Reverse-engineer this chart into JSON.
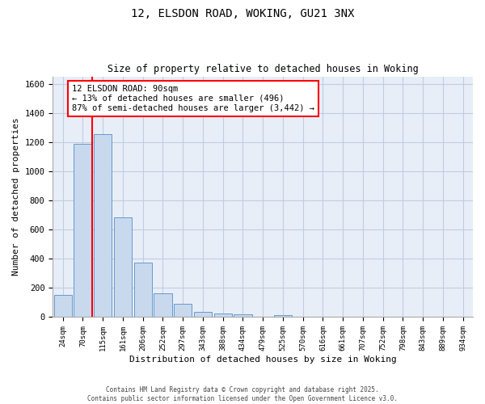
{
  "title_line1": "12, ELSDON ROAD, WOKING, GU21 3NX",
  "title_line2": "Size of property relative to detached houses in Woking",
  "xlabel": "Distribution of detached houses by size in Woking",
  "ylabel": "Number of detached properties",
  "bar_labels": [
    "24sqm",
    "70sqm",
    "115sqm",
    "161sqm",
    "206sqm",
    "252sqm",
    "297sqm",
    "343sqm",
    "388sqm",
    "434sqm",
    "479sqm",
    "525sqm",
    "570sqm",
    "616sqm",
    "661sqm",
    "707sqm",
    "752sqm",
    "798sqm",
    "843sqm",
    "889sqm",
    "934sqm"
  ],
  "bar_values": [
    150,
    1190,
    1255,
    685,
    375,
    165,
    90,
    35,
    25,
    18,
    0,
    15,
    0,
    0,
    0,
    0,
    0,
    0,
    0,
    0,
    0
  ],
  "bar_color": "#c8d9ee",
  "bar_edge_color": "#6699cc",
  "red_line_x": 1.45,
  "annotation_text": "12 ELSDON ROAD: 90sqm\n← 13% of detached houses are smaller (496)\n87% of semi-detached houses are larger (3,442) →",
  "annotation_box_color": "white",
  "annotation_box_edge_color": "red",
  "red_line_color": "red",
  "ylim": [
    0,
    1650
  ],
  "yticks": [
    0,
    200,
    400,
    600,
    800,
    1000,
    1200,
    1400,
    1600
  ],
  "grid_color": "#c0cce0",
  "background_color": "#e8eef8",
  "footer_text": "Contains HM Land Registry data © Crown copyright and database right 2025.\nContains public sector information licensed under the Open Government Licence v3.0.",
  "figsize": [
    6.0,
    5.0
  ],
  "dpi": 100
}
